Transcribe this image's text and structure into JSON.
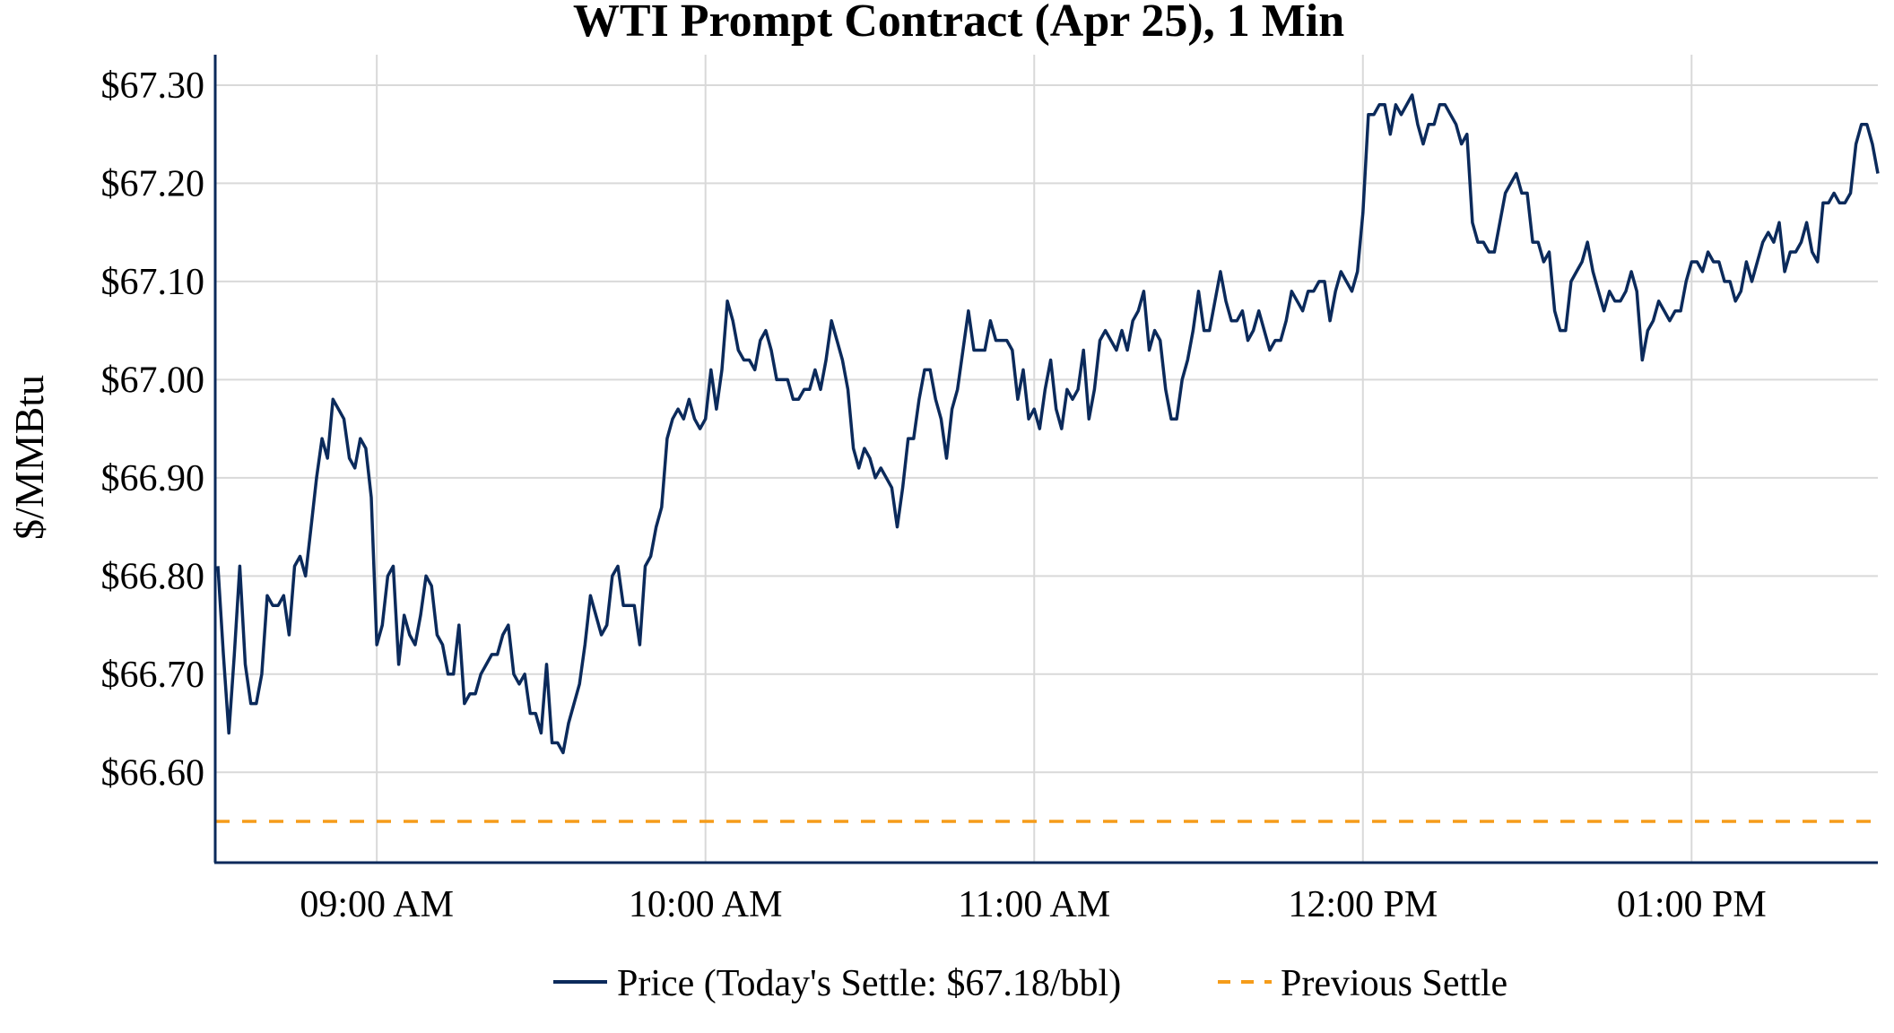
{
  "chart_data": {
    "type": "line",
    "title": "WTI Prompt Contract (Apr 25), 1 Min",
    "xlabel": "",
    "ylabel": "$/MMBtu",
    "x_start": "08:31",
    "x_interval_minutes": 1,
    "ylim": [
      66.508,
      67.331
    ],
    "y_ticks": [
      66.6,
      66.7,
      66.8,
      66.9,
      67.0,
      67.1,
      67.2,
      67.3
    ],
    "y_tick_labels": [
      "$66.60",
      "$66.70",
      "$66.80",
      "$66.90",
      "$67.00",
      "$67.10",
      "$67.20",
      "$67.30"
    ],
    "x_ticks": [
      {
        "index": 29,
        "label": "09:00 AM"
      },
      {
        "index": 89,
        "label": "10:00 AM"
      },
      {
        "index": 149,
        "label": "11:00 AM"
      },
      {
        "index": 209,
        "label": "12:00 PM"
      },
      {
        "index": 269,
        "label": "01:00 PM"
      }
    ],
    "grid": true,
    "legend_position": "bottom-center",
    "colors": {
      "price": "#0b2a5b",
      "previous_settle": "#f59c1a",
      "axis": "#0b2a5b",
      "grid": "#d9d9d9"
    },
    "series": [
      {
        "name": "Price (Today's Settle: $67.18/bbl)",
        "style": "solid",
        "values": [
          66.81,
          66.72,
          66.64,
          66.72,
          66.81,
          66.71,
          66.67,
          66.67,
          66.7,
          66.78,
          66.77,
          66.77,
          66.78,
          66.74,
          66.81,
          66.82,
          66.8,
          66.85,
          66.9,
          66.94,
          66.92,
          66.98,
          66.97,
          66.96,
          66.92,
          66.91,
          66.94,
          66.93,
          66.88,
          66.73,
          66.75,
          66.8,
          66.81,
          66.71,
          66.76,
          66.74,
          66.73,
          66.76,
          66.8,
          66.79,
          66.74,
          66.73,
          66.7,
          66.7,
          66.75,
          66.67,
          66.68,
          66.68,
          66.7,
          66.71,
          66.72,
          66.72,
          66.74,
          66.75,
          66.7,
          66.69,
          66.7,
          66.66,
          66.66,
          66.64,
          66.71,
          66.63,
          66.63,
          66.62,
          66.65,
          66.67,
          66.69,
          66.73,
          66.78,
          66.76,
          66.74,
          66.75,
          66.8,
          66.81,
          66.77,
          66.77,
          66.77,
          66.73,
          66.81,
          66.82,
          66.85,
          66.87,
          66.94,
          66.96,
          66.97,
          66.96,
          66.98,
          66.96,
          66.95,
          66.96,
          67.01,
          66.97,
          67.01,
          67.08,
          67.06,
          67.03,
          67.02,
          67.02,
          67.01,
          67.04,
          67.05,
          67.03,
          67.0,
          67.0,
          67.0,
          66.98,
          66.98,
          66.99,
          66.99,
          67.01,
          66.99,
          67.02,
          67.06,
          67.04,
          67.02,
          66.99,
          66.93,
          66.91,
          66.93,
          66.92,
          66.9,
          66.91,
          66.9,
          66.89,
          66.85,
          66.89,
          66.94,
          66.94,
          66.98,
          67.01,
          67.01,
          66.98,
          66.96,
          66.92,
          66.97,
          66.99,
          67.03,
          67.07,
          67.03,
          67.03,
          67.03,
          67.06,
          67.04,
          67.04,
          67.04,
          67.03,
          66.98,
          67.01,
          66.96,
          66.97,
          66.95,
          66.99,
          67.02,
          66.97,
          66.95,
          66.99,
          66.98,
          66.99,
          67.03,
          66.96,
          66.99,
          67.04,
          67.05,
          67.04,
          67.03,
          67.05,
          67.03,
          67.06,
          67.07,
          67.09,
          67.03,
          67.05,
          67.04,
          66.99,
          66.96,
          66.96,
          67.0,
          67.02,
          67.05,
          67.09,
          67.05,
          67.05,
          67.08,
          67.11,
          67.08,
          67.06,
          67.06,
          67.07,
          67.04,
          67.05,
          67.07,
          67.05,
          67.03,
          67.04,
          67.04,
          67.06,
          67.09,
          67.08,
          67.07,
          67.09,
          67.09,
          67.1,
          67.1,
          67.06,
          67.09,
          67.11,
          67.1,
          67.09,
          67.11,
          67.17,
          67.27,
          67.27,
          67.28,
          67.28,
          67.25,
          67.28,
          67.27,
          67.28,
          67.29,
          67.26,
          67.24,
          67.26,
          67.26,
          67.28,
          67.28,
          67.27,
          67.26,
          67.24,
          67.25,
          67.16,
          67.14,
          67.14,
          67.13,
          67.13,
          67.16,
          67.19,
          67.2,
          67.21,
          67.19,
          67.19,
          67.14,
          67.14,
          67.12,
          67.13,
          67.07,
          67.05,
          67.05,
          67.1,
          67.11,
          67.12,
          67.14,
          67.11,
          67.09,
          67.07,
          67.09,
          67.08,
          67.08,
          67.09,
          67.11,
          67.09,
          67.02,
          67.05,
          67.06,
          67.08,
          67.07,
          67.06,
          67.07,
          67.07,
          67.1,
          67.12,
          67.12,
          67.11,
          67.13,
          67.12,
          67.12,
          67.1,
          67.1,
          67.08,
          67.09,
          67.12,
          67.1,
          67.12,
          67.14,
          67.15,
          67.14,
          67.16,
          67.11,
          67.13,
          67.13,
          67.14,
          67.16,
          67.13,
          67.12,
          67.18,
          67.18,
          67.19,
          67.18,
          67.18,
          67.19,
          67.24,
          67.26,
          67.26,
          67.24,
          67.21
        ]
      },
      {
        "name": "Previous Settle",
        "style": "dashed",
        "value": 66.55
      }
    ]
  }
}
